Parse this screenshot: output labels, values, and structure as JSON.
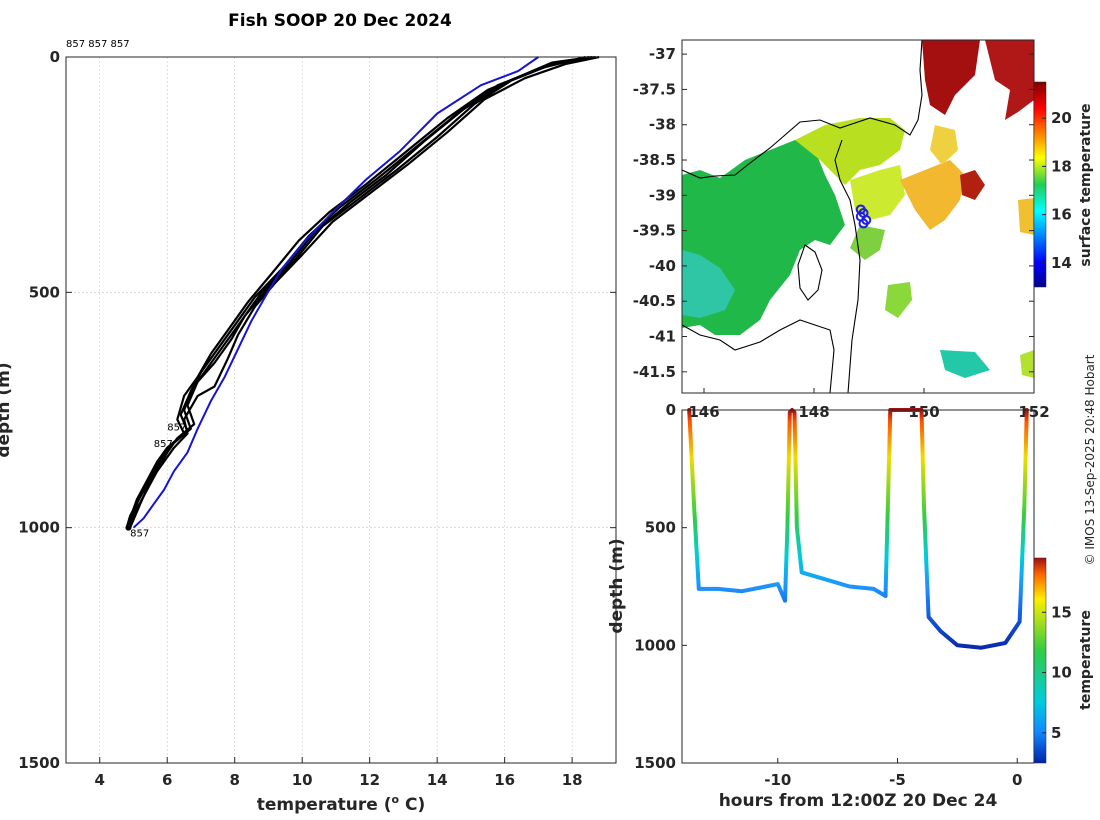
{
  "title": "Fish SOOP 20 Dec 2024",
  "credit": "© IMOS 13-Sep-2025 20:48 Hobart",
  "colors": {
    "profile": "#000000",
    "climatology": "#1414d2",
    "land": "#000000",
    "position_marker": "#1e1ee6"
  },
  "chart_data": [
    {
      "type": "line",
      "name": "temperature-depth-profile",
      "xlabel": "temperature (o C)",
      "ylabel": "depth (m)",
      "xlim": [
        3,
        19.3
      ],
      "ylim": [
        0,
        1500
      ],
      "xticks": [
        4,
        6,
        8,
        10,
        12,
        14,
        16,
        18
      ],
      "yticks": [
        0,
        500,
        1000,
        1500
      ],
      "annotations": [
        {
          "text": "857 857 857",
          "x": 3.0,
          "y": -30
        },
        {
          "text": "857",
          "x": 4.9,
          "y": 1010
        },
        {
          "text": "857",
          "x": 6.0,
          "y": 785
        },
        {
          "text": "857",
          "x": 5.6,
          "y": 820
        }
      ],
      "series": [
        {
          "name": "climatology",
          "color": "#1414d2",
          "x": [
            17.0,
            16.4,
            15.3,
            14.0,
            12.9,
            11.9,
            10.9,
            10.1,
            9.4,
            8.9,
            8.5,
            8.1,
            7.7,
            7.3,
            6.9,
            6.6,
            6.2,
            5.9,
            5.6,
            5.3,
            5.0
          ],
          "y": [
            0,
            30,
            60,
            120,
            200,
            260,
            330,
            390,
            450,
            510,
            560,
            620,
            680,
            730,
            790,
            840,
            880,
            920,
            950,
            980,
            1000
          ]
        },
        {
          "name": "profile-1",
          "color": "#000000",
          "x": [
            18.8,
            17.8,
            16.6,
            15.4,
            14.3,
            13.1,
            12.0,
            10.9,
            10.0,
            9.2,
            8.6,
            8.1,
            7.8,
            7.4,
            6.9,
            6.5,
            6.6,
            6.2,
            5.9,
            5.5,
            5.2,
            4.9
          ],
          "y": [
            0,
            15,
            45,
            90,
            160,
            230,
            290,
            350,
            420,
            480,
            530,
            590,
            640,
            700,
            720,
            770,
            800,
            830,
            860,
            900,
            950,
            1000
          ]
        },
        {
          "name": "profile-2",
          "color": "#000000",
          "x": [
            18.7,
            17.6,
            16.2,
            15.1,
            14.0,
            12.8,
            11.7,
            10.6,
            9.8,
            9.0,
            8.3,
            7.9,
            7.4,
            6.9,
            6.6,
            6.8,
            6.3,
            6.0,
            5.7,
            5.4,
            5.1,
            4.85
          ],
          "y": [
            0,
            10,
            50,
            100,
            170,
            240,
            300,
            360,
            430,
            490,
            550,
            600,
            650,
            690,
            740,
            780,
            810,
            840,
            880,
            920,
            960,
            1000
          ]
        },
        {
          "name": "profile-3",
          "color": "#000000",
          "x": [
            18.6,
            17.4,
            16.0,
            14.8,
            13.6,
            12.5,
            11.4,
            10.4,
            9.6,
            8.8,
            8.2,
            7.7,
            7.2,
            6.8,
            6.5,
            6.7,
            6.2,
            5.9,
            5.6,
            5.2,
            5.0,
            4.8
          ],
          "y": [
            0,
            12,
            55,
            110,
            180,
            250,
            310,
            370,
            440,
            500,
            560,
            610,
            660,
            700,
            750,
            790,
            820,
            850,
            890,
            930,
            970,
            1000
          ]
        },
        {
          "name": "profile-4",
          "color": "#000000",
          "x": [
            18.5,
            17.2,
            15.8,
            14.6,
            13.4,
            12.2,
            11.1,
            10.2,
            9.4,
            8.6,
            8.0,
            7.5,
            7.0,
            6.7,
            6.4,
            6.6,
            6.1,
            5.8,
            5.5,
            5.2,
            4.9,
            4.8
          ],
          "y": [
            0,
            20,
            60,
            120,
            190,
            260,
            320,
            380,
            450,
            510,
            570,
            620,
            670,
            710,
            760,
            795,
            825,
            855,
            895,
            935,
            975,
            1000
          ]
        },
        {
          "name": "profile-5",
          "color": "#000000",
          "x": [
            18.4,
            17.0,
            15.5,
            14.3,
            13.1,
            11.9,
            10.8,
            9.9,
            9.1,
            8.4,
            7.8,
            7.3,
            6.9,
            6.5,
            6.3,
            6.5,
            6.0,
            5.7,
            5.4,
            5.1,
            4.9,
            4.8
          ],
          "y": [
            0,
            25,
            70,
            130,
            200,
            270,
            330,
            390,
            460,
            520,
            580,
            630,
            680,
            720,
            770,
            800,
            830,
            860,
            900,
            940,
            980,
            1000
          ]
        }
      ]
    },
    {
      "type": "heatmap",
      "name": "surface-temperature-map",
      "xlim": [
        145.6,
        152
      ],
      "ylim": [
        -41.8,
        -36.8
      ],
      "xticks": [
        146,
        148,
        150,
        152
      ],
      "yticks": [
        -37,
        -37.5,
        -38,
        -38.5,
        -39,
        -39.5,
        -40,
        -40.5,
        -41,
        -41.5
      ],
      "colorbar": {
        "label": "surface temperature",
        "range": [
          13,
          21.5
        ],
        "ticks": [
          14,
          16,
          18,
          20
        ]
      },
      "ship_track": {
        "lon": [
          148.85,
          148.9,
          148.95,
          148.9,
          148.85
        ],
        "lat": [
          -39.2,
          -39.25,
          -39.35,
          -39.4,
          -39.3
        ]
      }
    },
    {
      "type": "scatter",
      "name": "depth-time-section",
      "xlabel": "hours from 12:00Z 20 Dec 24",
      "ylabel": "depth (m)",
      "xlim": [
        -14,
        0.7
      ],
      "ylim": [
        0,
        1500
      ],
      "xticks": [
        -10,
        -5,
        0
      ],
      "yticks": [
        0,
        500,
        1000,
        1500
      ],
      "colorbar": {
        "label": "temperature",
        "range": [
          2.5,
          19.5
        ],
        "ticks": [
          5,
          10,
          15
        ]
      },
      "tracks": [
        {
          "t": [
            -13.7,
            -13.5,
            -13.3,
            -12.5,
            -11.5,
            -10.5,
            -10.0,
            -9.7
          ],
          "z": [
            0,
            400,
            760,
            760,
            770,
            750,
            740,
            810
          ]
        },
        {
          "t": [
            -9.7,
            -9.6,
            -9.5,
            -9.4,
            -9.3,
            -9.2,
            -9.0,
            -8.0,
            -7.0,
            -6.0,
            -5.5
          ],
          "z": [
            810,
            500,
            10,
            0,
            10,
            500,
            690,
            720,
            750,
            760,
            790
          ]
        },
        {
          "t": [
            -5.5,
            -5.4,
            -5.3,
            -4.0,
            -3.9,
            -3.7,
            -3.2,
            -2.5,
            -1.5,
            -0.5,
            0.1,
            0.3,
            0.4
          ],
          "z": [
            790,
            400,
            0,
            0,
            400,
            880,
            940,
            1000,
            1010,
            990,
            900,
            400,
            0
          ]
        }
      ]
    }
  ]
}
